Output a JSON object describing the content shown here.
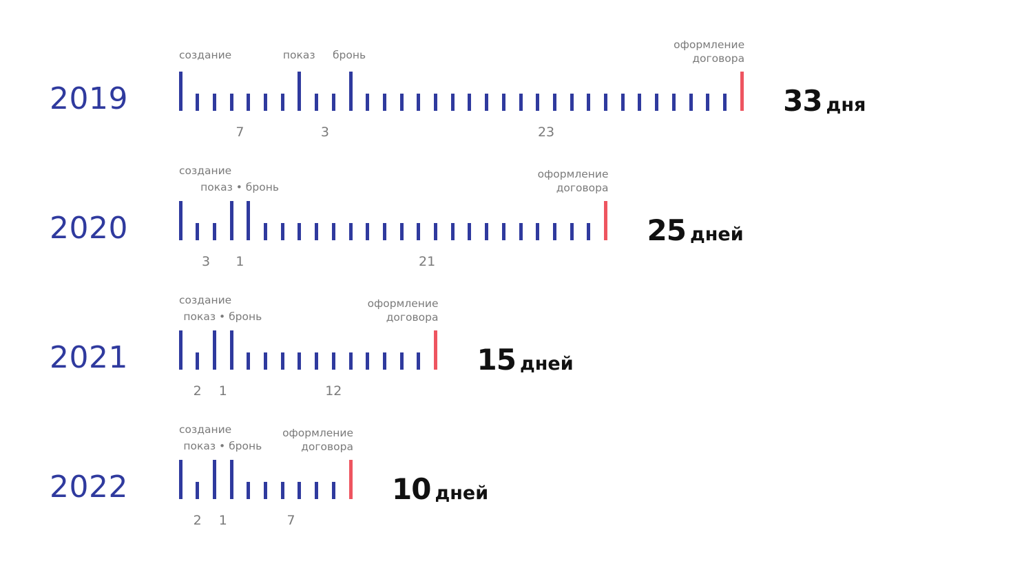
{
  "timelines": [
    {
      "year": "2019",
      "days": 33,
      "label_create": "создание",
      "label_show": "показ",
      "label_book": "бронь",
      "label_contract": "оформление\nдоговора",
      "segments": [
        "7",
        "3",
        "23"
      ],
      "total_number": "33",
      "total_unit": "дня"
    },
    {
      "year": "2020",
      "days": 25,
      "label_create": "создание",
      "label_showbook": "показ • бронь",
      "label_contract": "оформление\nдоговора",
      "segments": [
        "3",
        "1",
        "21"
      ],
      "total_number": "25",
      "total_unit": "дней"
    },
    {
      "year": "2021",
      "days": 15,
      "label_create": "создание",
      "label_showbook": "показ • бронь",
      "label_contract": "оформление\nдоговора",
      "segments": [
        "2",
        "1",
        "12"
      ],
      "total_number": "15",
      "total_unit": "дней"
    },
    {
      "year": "2022",
      "days": 10,
      "label_create": "создание",
      "label_showbook": "показ • бронь",
      "label_contract": "оформление\nдоговора",
      "segments": [
        "2",
        "1",
        "7"
      ],
      "total_number": "10",
      "total_unit": "дней"
    }
  ],
  "colors": {
    "tick": "#2f3a9e",
    "final_tick": "#ee5560",
    "year": "#2f3a9e",
    "label": "#7a7a7a",
    "total": "#111111"
  }
}
